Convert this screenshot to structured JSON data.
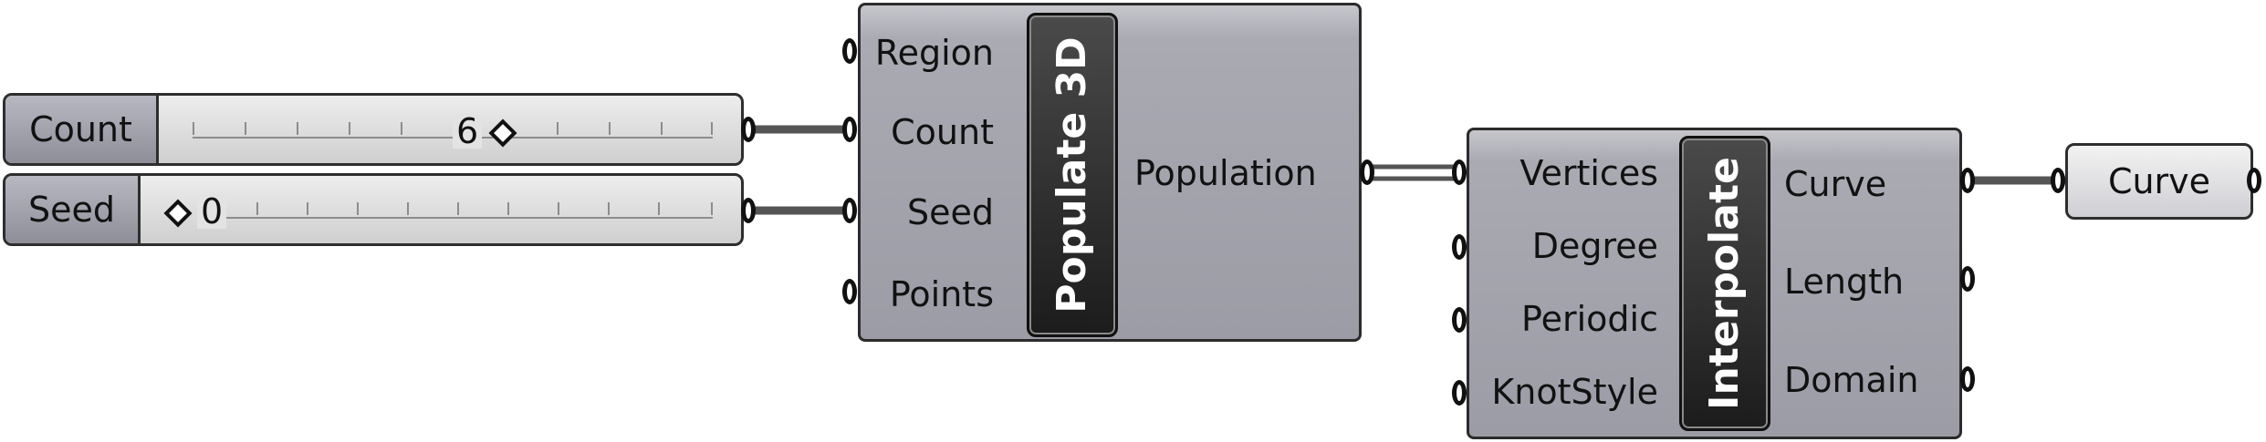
{
  "count_slider": {
    "label": "Count",
    "value": "6"
  },
  "seed_slider": {
    "label": "Seed",
    "value": "0"
  },
  "populate": {
    "title": "Populate 3D",
    "inputs": [
      "Region",
      "Count",
      "Seed",
      "Points"
    ],
    "outputs": [
      "Population"
    ]
  },
  "interpolate": {
    "title": "Interpolate",
    "inputs": [
      "Vertices",
      "Degree",
      "Periodic",
      "KnotStyle"
    ],
    "outputs": [
      "Curve",
      "Length",
      "Domain"
    ]
  },
  "curve_param": {
    "label": "Curve"
  }
}
